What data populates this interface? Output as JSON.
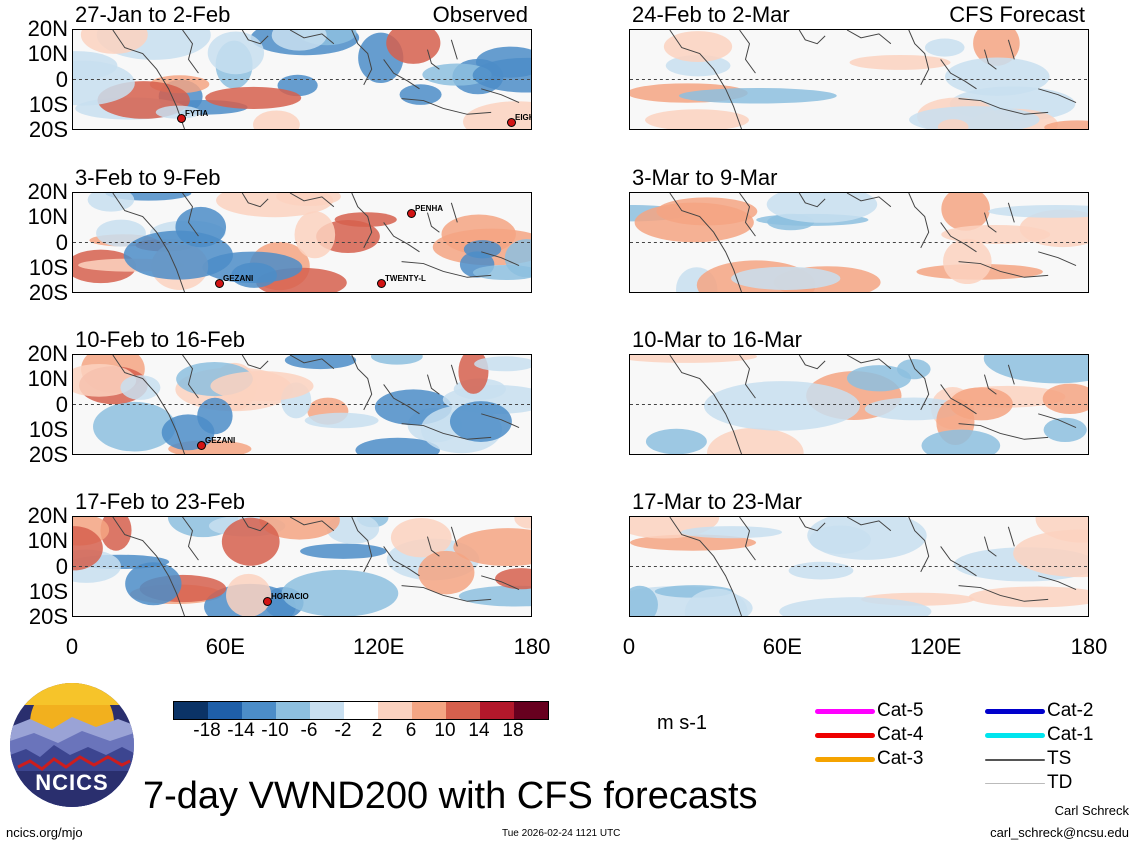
{
  "chart_data": {
    "type": "heatmap",
    "title": "7-day VWND200 with CFS forecasts",
    "variable": "VWND200",
    "units": "m s-1",
    "xlim": [
      0,
      180
    ],
    "ylim": [
      -20,
      20
    ],
    "x_ticks": [
      "0",
      "60E",
      "120E",
      "180"
    ],
    "y_ticks": [
      "20N",
      "10N",
      "0",
      "10S",
      "20S"
    ],
    "colorbar_ticks": [
      "-18",
      "-14",
      "-10",
      "-6",
      "-2",
      "2",
      "6",
      "10",
      "14",
      "18"
    ],
    "colorbar_colors": [
      "#0b3366",
      "#1f5fa8",
      "#4c8dc8",
      "#8dbfdf",
      "#c8dff0",
      "#ffffff",
      "#fbd2c0",
      "#f4a583",
      "#d6604d",
      "#b2182b",
      "#67001f"
    ],
    "columns": [
      {
        "label": "Observed",
        "panels": [
          {
            "period": "27-Jan to 2-Feb",
            "storms": [
              "FYTIA",
              "EIGHTEEN"
            ]
          },
          {
            "period": "3-Feb to 9-Feb",
            "storms": [
              "PENHA",
              "GEZANI",
              "TWENTY-L"
            ]
          },
          {
            "period": "10-Feb to 16-Feb",
            "storms": [
              "GEZANI"
            ]
          },
          {
            "period": "17-Feb to 23-Feb",
            "storms": [
              "HORACIO"
            ]
          }
        ]
      },
      {
        "label": "CFS Forecast",
        "panels": [
          {
            "period": "24-Feb to 2-Mar",
            "storms": []
          },
          {
            "period": "3-Mar to 9-Mar",
            "storms": []
          },
          {
            "period": "10-Mar to 16-Mar",
            "storms": []
          },
          {
            "period": "17-Mar to 23-Mar",
            "storms": []
          }
        ]
      }
    ]
  },
  "legend": {
    "items": [
      {
        "label": "Cat-5",
        "color": "#ff00ff"
      },
      {
        "label": "Cat-4",
        "color": "#ee0000"
      },
      {
        "label": "Cat-3",
        "color": "#f5a300"
      },
      {
        "label": "Cat-2",
        "color": "#0000cc"
      },
      {
        "label": "Cat-1",
        "color": "#00e5ee"
      },
      {
        "label": "TS",
        "color": "#555555"
      },
      {
        "label": "TD",
        "color": "#bbbbbb"
      }
    ]
  },
  "footer": {
    "title": "7-day VWND200 with CFS forecasts",
    "website": "ncics.org/mjo",
    "timestamp": "Tue 2026-02-24 1121 UTC",
    "author": "Carl Schreck",
    "email": "carl_schreck@ncsu.edu",
    "logo_text": "NCICS"
  }
}
